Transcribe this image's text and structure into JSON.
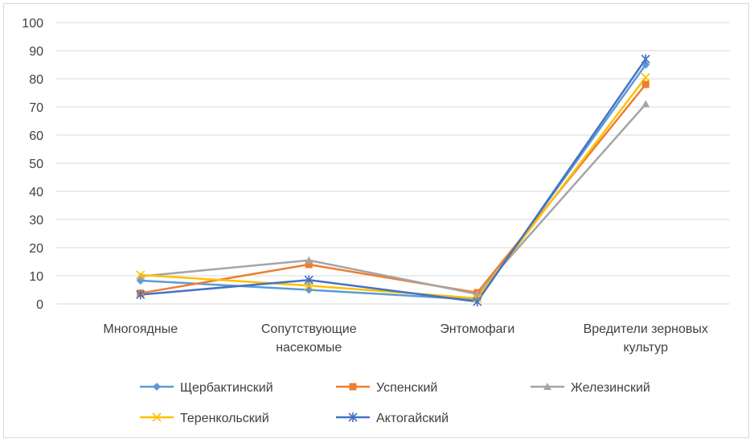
{
  "chart_data": {
    "type": "line",
    "title": "",
    "xlabel": "",
    "ylabel": "",
    "categories": [
      "Многоядные",
      "Сопутствующие насекомые",
      "Энтомофаги",
      "Вредители зерновых культур"
    ],
    "category_lines": [
      [
        "Многоядные"
      ],
      [
        "Сопутствующие",
        "насекомые"
      ],
      [
        "Энтомофаги"
      ],
      [
        "Вредители зерновых",
        "культур"
      ]
    ],
    "ylim": [
      0,
      100
    ],
    "yticks": [
      0,
      10,
      20,
      30,
      40,
      50,
      60,
      70,
      80,
      90,
      100
    ],
    "grid": true,
    "legend_position": "bottom",
    "series": [
      {
        "name": "Щербактинский",
        "values": [
          8.3,
          5.0,
          1.5,
          85.0
        ],
        "color": "#5B9BD5",
        "marker": "diamond"
      },
      {
        "name": "Успенский",
        "values": [
          3.8,
          14.0,
          4.0,
          78.0
        ],
        "color": "#ED7D31",
        "marker": "square"
      },
      {
        "name": "Железинский",
        "values": [
          9.8,
          15.5,
          3.5,
          71.0
        ],
        "color": "#A5A5A5",
        "marker": "triangle"
      },
      {
        "name": "Теренкольский",
        "values": [
          10.3,
          6.5,
          2.0,
          80.5
        ],
        "color": "#FFC000",
        "marker": "x"
      },
      {
        "name": "Актогайский",
        "values": [
          3.3,
          8.5,
          0.8,
          87.0
        ],
        "color": "#4472C4",
        "marker": "star"
      }
    ]
  }
}
